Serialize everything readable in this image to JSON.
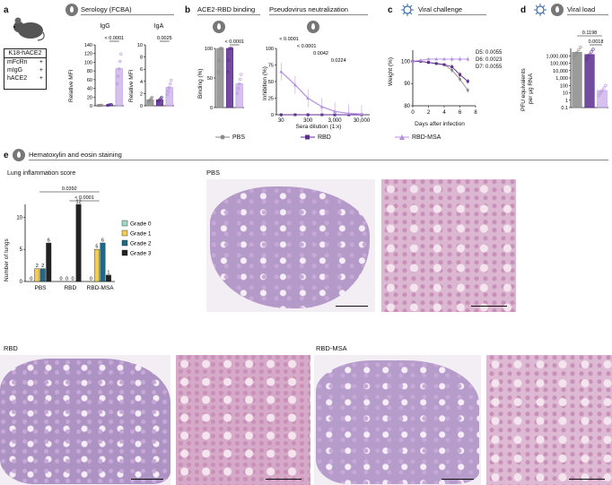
{
  "panel_a": {
    "label": "a",
    "mouse_box": {
      "title": "K18-hACE2",
      "rows": [
        {
          "name": "mFcRn",
          "val": "+"
        },
        {
          "name": "mIgG",
          "val": "+"
        },
        {
          "name": "hACE2",
          "val": "+"
        }
      ]
    },
    "header": "Serology (FCBA)",
    "igg": {
      "title": "IgG",
      "ylabel": "Relative MFI",
      "pvalue": "< 0.0001",
      "ticks": [
        "0",
        "20",
        "40",
        "60",
        "80",
        "100",
        "120",
        "140"
      ]
    },
    "iga": {
      "title": "IgA",
      "ylabel": "Relative MFI",
      "pvalue": "0.0025",
      "ticks": [
        "0",
        "2",
        "4",
        "6",
        "8",
        "10"
      ]
    }
  },
  "panel_b": {
    "label": "b",
    "header1": "ACE2-RBD binding",
    "header2": "Pseudovirus neutralization",
    "binding": {
      "ylabel": "Binding (%)",
      "pvalue": "< 0.0001",
      "ticks": [
        "0",
        "50",
        "100"
      ]
    },
    "neutralization": {
      "ylabel": "Inhibition (%)",
      "xlabel": "Sera dilution (1:x)",
      "pvalues": [
        "< 0.0001",
        "< 0.0001",
        "0.0042",
        "0.0224"
      ],
      "yticks": [
        "0",
        "25",
        "50",
        "75",
        "100"
      ],
      "xticks": [
        "30",
        "300",
        "3,000",
        "30,000"
      ]
    }
  },
  "panel_c": {
    "label": "c",
    "header": "Viral challenge",
    "ylabel": "Weight (%)",
    "xlabel": "Days after infection",
    "yticks": [
      "80",
      "90",
      "100"
    ],
    "xticks": [
      "0",
      "2",
      "4",
      "6",
      "8"
    ],
    "pvalues": [
      "D5: 0.0055",
      "D6: 0.0023",
      "D7: 0.0055"
    ]
  },
  "panel_d": {
    "label": "d",
    "header": "Viral load",
    "ylabel1": "PFU equivalents",
    "ylabel2": "per μg RNA",
    "pvalues": [
      "0.1198",
      "0.0018"
    ],
    "yticks": [
      "1,000,000",
      "100,000",
      "10,000",
      "1,000",
      "100",
      "10",
      "1",
      "0.1"
    ]
  },
  "legend": [
    {
      "name": "PBS",
      "color": "#8a8a8a"
    },
    {
      "name": "RBD",
      "color": "#5b2d8e"
    },
    {
      "name": "RBD-MSA",
      "color": "#b48ee0"
    }
  ],
  "panel_e": {
    "label": "e",
    "header": "Hematoxylin and eosin staining",
    "chart_title": "Lung inflammation score",
    "pvalues": [
      "0.0392",
      "< 0.0001"
    ],
    "photo_labels": [
      "PBS",
      "RBD",
      "RBD-MSA"
    ],
    "colors": {
      "grade0": "#9fd8c9",
      "grade1": "#f2cd55",
      "grade2": "#1d6a88",
      "grade3": "#222222"
    }
  },
  "chart_data": [
    {
      "type": "bar",
      "title": "Lung inflammation score",
      "ylabel": "Number of lungs",
      "categories": [
        "PBS",
        "RBD",
        "RBD-MSA"
      ],
      "ylim": [
        0,
        12
      ],
      "yticks": [
        "0",
        "5",
        "10"
      ],
      "series": [
        {
          "name": "Grade 0",
          "values": [
            0,
            0,
            0
          ]
        },
        {
          "name": "Grade 1",
          "values": [
            2,
            0,
            5
          ]
        },
        {
          "name": "Grade 2",
          "values": [
            2,
            0,
            6
          ]
        },
        {
          "name": "Grade 3",
          "values": [
            6,
            12,
            1
          ]
        }
      ]
    },
    {
      "type": "line",
      "title": "Viral challenge",
      "xlabel": "Days after infection",
      "ylabel": "Weight (%)",
      "x": [
        0,
        1,
        2,
        3,
        4,
        5,
        6,
        7
      ],
      "xlim": [
        0,
        8
      ],
      "ylim": [
        80,
        105
      ],
      "series": [
        {
          "name": "PBS",
          "values": [
            100,
            100,
            99.5,
            99,
            98.5,
            96,
            92,
            87
          ]
        },
        {
          "name": "RBD",
          "values": [
            100,
            100,
            99.5,
            99,
            98.5,
            97.5,
            94,
            91
          ]
        },
        {
          "name": "RBD-MSA",
          "values": [
            100,
            100.5,
            101,
            101,
            101,
            101,
            101,
            101
          ]
        }
      ]
    },
    {
      "type": "line",
      "title": "Pseudovirus neutralization",
      "xlabel": "Sera dilution (1:x)",
      "ylabel": "Inhibition (%)",
      "x": [
        30,
        100,
        300,
        1000,
        3000,
        10000,
        30000
      ],
      "ylim": [
        0,
        100
      ],
      "series": [
        {
          "name": "PBS",
          "values": [
            0,
            0,
            0,
            0,
            0,
            0,
            0
          ]
        },
        {
          "name": "RBD",
          "values": [
            0,
            0,
            0,
            0,
            0,
            0,
            0
          ]
        },
        {
          "name": "RBD-MSA",
          "values": [
            65,
            45,
            25,
            12,
            5,
            2,
            1
          ]
        }
      ]
    },
    {
      "type": "bar",
      "title": "ACE2-RBD binding",
      "ylabel": "Binding (%)",
      "categories": [
        "PBS",
        "RBD",
        "RBD-MSA"
      ],
      "ylim": [
        0,
        100
      ],
      "values": [
        100,
        100,
        40
      ]
    },
    {
      "type": "bar",
      "title": "IgG",
      "ylabel": "Relative MFI",
      "categories": [
        "PBS",
        "RBD",
        "RBD-MSA"
      ],
      "ylim": [
        0,
        140
      ],
      "values": [
        1,
        2,
        85
      ]
    },
    {
      "type": "bar",
      "title": "IgA",
      "ylabel": "Relative MFI",
      "categories": [
        "PBS",
        "RBD",
        "RBD-MSA"
      ],
      "ylim": [
        0,
        10
      ],
      "values": [
        1,
        1,
        3
      ]
    },
    {
      "type": "bar",
      "title": "Viral load",
      "ylabel": "PFU equivalents per μg RNA",
      "categories": [
        "PBS",
        "RBD",
        "RBD-MSA"
      ],
      "log_scale": true,
      "ylim": [
        0.1,
        10000000
      ],
      "values": [
        3000000,
        1500000,
        20
      ]
    }
  ]
}
